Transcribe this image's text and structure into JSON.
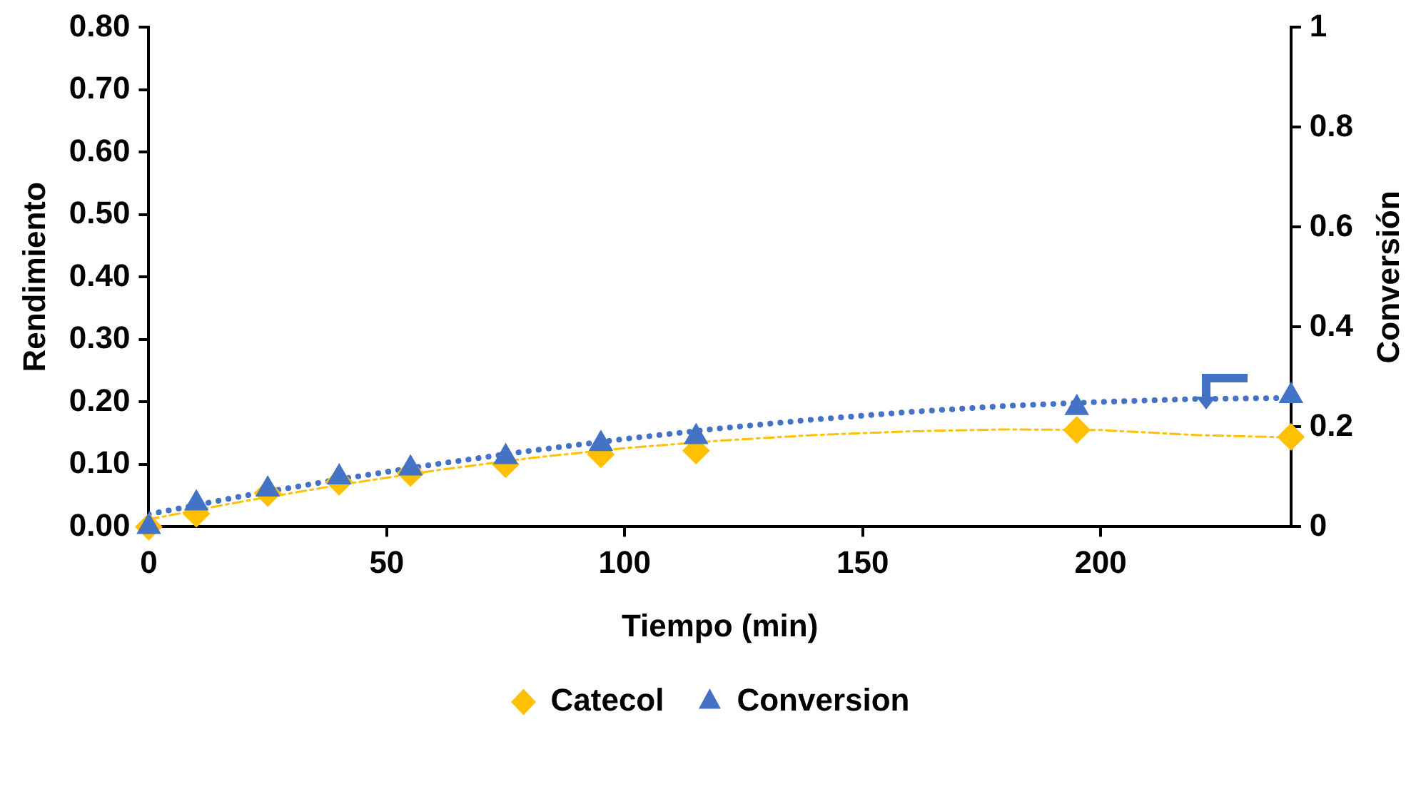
{
  "chart_data": {
    "type": "scatter",
    "xlabel": "Tiempo (min)",
    "ylabel": "Rendimiento",
    "y2label": "Conversión",
    "xlim": [
      0,
      240
    ],
    "xticks": [
      0,
      50,
      100,
      150,
      200
    ],
    "ylim": [
      0,
      0.8
    ],
    "yticks": [
      {
        "value": 0,
        "label": "0.00"
      },
      {
        "value": 0.1,
        "label": "0.10"
      },
      {
        "value": 0.2,
        "label": "0.20"
      },
      {
        "value": 0.3,
        "label": "0.30"
      },
      {
        "value": 0.4,
        "label": "0.40"
      },
      {
        "value": 0.5,
        "label": "0.50"
      },
      {
        "value": 0.6,
        "label": "0.60"
      },
      {
        "value": 0.7,
        "label": "0.70"
      },
      {
        "value": 0.8,
        "label": "0.80"
      }
    ],
    "y2lim": [
      0,
      1
    ],
    "y2ticks": [
      0,
      0.2,
      0.4,
      0.6,
      0.8,
      1
    ],
    "grid": false,
    "legend": "bottom",
    "series": [
      {
        "name": "Catecol",
        "type": "scatter",
        "marker": "diamond",
        "color": "#ffc000",
        "x": [
          0,
          10,
          25,
          40,
          55,
          75,
          95,
          115,
          195,
          240
        ],
        "values": [
          0,
          0.021,
          0.054,
          0.072,
          0.086,
          0.1,
          0.116,
          0.122,
          0.155,
          0.144
        ]
      },
      {
        "name": "Conversion",
        "type": "scatter",
        "marker": "triangle",
        "axis": "y2",
        "color": "#4472c4",
        "x": [
          0,
          10,
          25,
          40,
          55,
          75,
          95,
          115,
          195,
          240
        ],
        "values": [
          0,
          0.047,
          0.075,
          0.099,
          0.117,
          0.14,
          0.166,
          0.18,
          0.238,
          0.262
        ]
      },
      {
        "type": "line",
        "marker": "none",
        "line_style": "dashed",
        "color": "#ffc000",
        "x": [
          0,
          20,
          40,
          60,
          80,
          100,
          120,
          140,
          160,
          180,
          200,
          220,
          240
        ],
        "values": [
          0.012,
          0.041,
          0.067,
          0.09,
          0.11,
          0.126,
          0.138,
          0.147,
          0.153,
          0.156,
          0.155,
          0.147,
          0.143
        ]
      },
      {
        "type": "line",
        "marker": "none",
        "line_style": "dotted",
        "axis": "y2",
        "color": "#4472c4",
        "x": [
          0,
          20,
          40,
          60,
          80,
          100,
          120,
          140,
          160,
          180,
          200,
          220,
          240
        ],
        "values": [
          0.025,
          0.062,
          0.095,
          0.125,
          0.152,
          0.176,
          0.197,
          0.215,
          0.23,
          0.242,
          0.25,
          0.256,
          0.258
        ]
      }
    ]
  }
}
